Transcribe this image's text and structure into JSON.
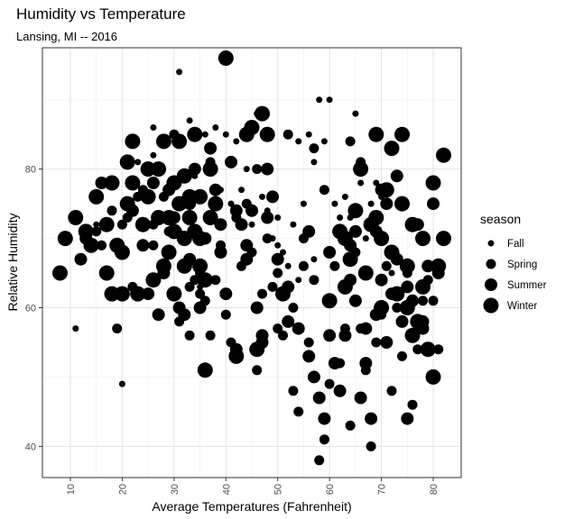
{
  "chart_data": {
    "type": "scatter",
    "title": "Humidity vs Temperature",
    "subtitle": "Lansing, MI -- 2016",
    "xlabel": "Average Temperatures (Fahrenheit)",
    "ylabel": "Relative Humidity",
    "xlim": [
      4.6,
      85.4
    ],
    "ylim": [
      35.5,
      97.5
    ],
    "xticks": [
      10,
      20,
      30,
      40,
      50,
      60,
      70,
      80
    ],
    "yticks": [
      40,
      60,
      80
    ],
    "grid": true,
    "legend": {
      "title": "season",
      "placement": "right",
      "entries": [
        "Fall",
        "Spring",
        "Summer",
        "Winter"
      ]
    },
    "size_levels": {
      "Fall": 3.5,
      "Spring": 5.5,
      "Summer": 7.0,
      "Winter": 8.5
    },
    "series": [
      {
        "name": "Winter",
        "points": [
          [
            8,
            65
          ],
          [
            9,
            70
          ],
          [
            11,
            73
          ],
          [
            13,
            71
          ],
          [
            14,
            69
          ],
          [
            15,
            76
          ],
          [
            17,
            72
          ],
          [
            17,
            65
          ],
          [
            18,
            78
          ],
          [
            18,
            62
          ],
          [
            19,
            69
          ],
          [
            20,
            62
          ],
          [
            20,
            68
          ],
          [
            21,
            81
          ],
          [
            21,
            75
          ],
          [
            22,
            78
          ],
          [
            22,
            84
          ],
          [
            23,
            62
          ],
          [
            24,
            72
          ],
          [
            25,
            76
          ],
          [
            25,
            80
          ],
          [
            26,
            64
          ],
          [
            27,
            73
          ],
          [
            27,
            80
          ],
          [
            28,
            84
          ],
          [
            28,
            66
          ],
          [
            29,
            73
          ],
          [
            29,
            68
          ],
          [
            30,
            71
          ],
          [
            30,
            78
          ],
          [
            30,
            62
          ],
          [
            31,
            84
          ],
          [
            31,
            75
          ],
          [
            32,
            70
          ],
          [
            32,
            66
          ],
          [
            32,
            79
          ],
          [
            33,
            76
          ],
          [
            33,
            73
          ],
          [
            34,
            85
          ],
          [
            34,
            71
          ],
          [
            35,
            70
          ],
          [
            35,
            76
          ],
          [
            35,
            66
          ],
          [
            36,
            64
          ],
          [
            36,
            51
          ],
          [
            37,
            73
          ],
          [
            37,
            80
          ],
          [
            38,
            75
          ],
          [
            40,
            96
          ],
          [
            42,
            53
          ],
          [
            44,
            85
          ],
          [
            45,
            86
          ],
          [
            46,
            54
          ],
          [
            47,
            88
          ],
          [
            48,
            85
          ],
          [
            51,
            62
          ],
          [
            62,
            71
          ],
          [
            63,
            70
          ],
          [
            64,
            67
          ],
          [
            65,
            74
          ],
          [
            67,
            65
          ],
          [
            68,
            72
          ],
          [
            69,
            73
          ],
          [
            70,
            70
          ],
          [
            70,
            60
          ],
          [
            71,
            77
          ],
          [
            72,
            83
          ],
          [
            72,
            68
          ],
          [
            73,
            62
          ],
          [
            74,
            75
          ],
          [
            75,
            66
          ],
          [
            75,
            60
          ],
          [
            76,
            72
          ],
          [
            76,
            56
          ],
          [
            77,
            58
          ],
          [
            78,
            63
          ],
          [
            78,
            70
          ],
          [
            79,
            54
          ],
          [
            80,
            50
          ],
          [
            81,
            66
          ],
          [
            82,
            70
          ],
          [
            82,
            82
          ],
          [
            80,
            78
          ],
          [
            74,
            85
          ],
          [
            69,
            85
          ],
          [
            66,
            80
          ],
          [
            63,
            63
          ],
          [
            60,
            61
          ]
        ]
      },
      {
        "name": "Summer",
        "points": [
          [
            24,
            69
          ],
          [
            26,
            78
          ],
          [
            28,
            65
          ],
          [
            29,
            77
          ],
          [
            30,
            73
          ],
          [
            31,
            60
          ],
          [
            32,
            59
          ],
          [
            33,
            75
          ],
          [
            34,
            80
          ],
          [
            35,
            60
          ],
          [
            36,
            70
          ],
          [
            38,
            77
          ],
          [
            39,
            68
          ],
          [
            40,
            62
          ],
          [
            41,
            81
          ],
          [
            42,
            54
          ],
          [
            43,
            72
          ],
          [
            44,
            67
          ],
          [
            45,
            74
          ],
          [
            46,
            60
          ],
          [
            47,
            55
          ],
          [
            48,
            80
          ],
          [
            49,
            76
          ],
          [
            50,
            67
          ],
          [
            52,
            63
          ],
          [
            54,
            57
          ],
          [
            56,
            53
          ],
          [
            57,
            50
          ],
          [
            58,
            47
          ],
          [
            59,
            44
          ],
          [
            60,
            56
          ],
          [
            61,
            52
          ],
          [
            62,
            48
          ],
          [
            63,
            56
          ],
          [
            64,
            69
          ],
          [
            65,
            61
          ],
          [
            66,
            47
          ],
          [
            67,
            57
          ],
          [
            68,
            44
          ],
          [
            69,
            59
          ],
          [
            70,
            64
          ],
          [
            70,
            77
          ],
          [
            71,
            55
          ],
          [
            72,
            62
          ],
          [
            73,
            67
          ],
          [
            74,
            58
          ],
          [
            75,
            63
          ],
          [
            76,
            61
          ],
          [
            77,
            72
          ],
          [
            78,
            58
          ],
          [
            79,
            66
          ],
          [
            80,
            75
          ],
          [
            81,
            65
          ],
          [
            67,
            52
          ],
          [
            64,
            64
          ],
          [
            69,
            71
          ],
          [
            75,
            44
          ],
          [
            78,
            57
          ],
          [
            73,
            79
          ],
          [
            71,
            75
          ],
          [
            65,
            71
          ],
          [
            60,
            68
          ],
          [
            56,
            71
          ],
          [
            52,
            58
          ],
          [
            48,
            73
          ],
          [
            47,
            56
          ],
          [
            44,
            69
          ],
          [
            42,
            74
          ],
          [
            39,
            72
          ],
          [
            37,
            83
          ],
          [
            33,
            67
          ],
          [
            27,
            59
          ],
          [
            25,
            62
          ],
          [
            22,
            74
          ],
          [
            16,
            78
          ],
          [
            13,
            70
          ],
          [
            12,
            67
          ]
        ]
      },
      {
        "name": "Spring",
        "points": [
          [
            19,
            57
          ],
          [
            21,
            73
          ],
          [
            23,
            76
          ],
          [
            26,
            72
          ],
          [
            29,
            71
          ],
          [
            30,
            85
          ],
          [
            33,
            56
          ],
          [
            34,
            64
          ],
          [
            35,
            62
          ],
          [
            36,
            61
          ],
          [
            37,
            81
          ],
          [
            38,
            64
          ],
          [
            39,
            69
          ],
          [
            41,
            55
          ],
          [
            42,
            73
          ],
          [
            44,
            75
          ],
          [
            45,
            68
          ],
          [
            46,
            51
          ],
          [
            47,
            62
          ],
          [
            48,
            70
          ],
          [
            49,
            63
          ],
          [
            50,
            65
          ],
          [
            51,
            56
          ],
          [
            52,
            85
          ],
          [
            53,
            48
          ],
          [
            54,
            45
          ],
          [
            55,
            66
          ],
          [
            56,
            55
          ],
          [
            57,
            64
          ],
          [
            58,
            38
          ],
          [
            59,
            41
          ],
          [
            60,
            49
          ],
          [
            61,
            66
          ],
          [
            62,
            52
          ],
          [
            63,
            57
          ],
          [
            64,
            43
          ],
          [
            65,
            68
          ],
          [
            66,
            57
          ],
          [
            67,
            51
          ],
          [
            68,
            40
          ],
          [
            69,
            55
          ],
          [
            70,
            59
          ],
          [
            71,
            66
          ],
          [
            72,
            48
          ],
          [
            73,
            60
          ],
          [
            74,
            53
          ],
          [
            75,
            65
          ],
          [
            76,
            46
          ],
          [
            77,
            54
          ],
          [
            78,
            61
          ],
          [
            79,
            64
          ],
          [
            80,
            61
          ],
          [
            81,
            54
          ],
          [
            64,
            84
          ],
          [
            66,
            81
          ],
          [
            59,
            77
          ],
          [
            57,
            83
          ],
          [
            55,
            70
          ],
          [
            53,
            60
          ],
          [
            50,
            57
          ],
          [
            46,
            80
          ],
          [
            43,
            66
          ],
          [
            40,
            59
          ],
          [
            37,
            56
          ],
          [
            35,
            65
          ],
          [
            33,
            63
          ],
          [
            31,
            58
          ],
          [
            28,
            76
          ],
          [
            26,
            69
          ],
          [
            24,
            77
          ],
          [
            22,
            63
          ],
          [
            20,
            72
          ],
          [
            18,
            74
          ],
          [
            16,
            69
          ],
          [
            15,
            71
          ]
        ]
      },
      {
        "name": "Fall",
        "points": [
          [
            11,
            57
          ],
          [
            20,
            49
          ],
          [
            26,
            86
          ],
          [
            31,
            71
          ],
          [
            34,
            79
          ],
          [
            35,
            63
          ],
          [
            38,
            86
          ],
          [
            40,
            85
          ],
          [
            41,
            75
          ],
          [
            43,
            77
          ],
          [
            45,
            72
          ],
          [
            46,
            88
          ],
          [
            47,
            76
          ],
          [
            48,
            74
          ],
          [
            49,
            70
          ],
          [
            50,
            73
          ],
          [
            51,
            68
          ],
          [
            52,
            66
          ],
          [
            53,
            72
          ],
          [
            54,
            64
          ],
          [
            55,
            75
          ],
          [
            56,
            85
          ],
          [
            57,
            81
          ],
          [
            58,
            90
          ],
          [
            59,
            84
          ],
          [
            60,
            90
          ],
          [
            61,
            75
          ],
          [
            62,
            73
          ],
          [
            63,
            76
          ],
          [
            64,
            73
          ],
          [
            65,
            88
          ],
          [
            66,
            78
          ],
          [
            67,
            70
          ],
          [
            68,
            75
          ],
          [
            69,
            78
          ],
          [
            70,
            76
          ],
          [
            72,
            65
          ],
          [
            57,
            67
          ],
          [
            54,
            84
          ],
          [
            50,
            69
          ],
          [
            44,
            80
          ],
          [
            42,
            84
          ],
          [
            39,
            77
          ],
          [
            36,
            85
          ],
          [
            33,
            87
          ],
          [
            31,
            94
          ],
          [
            26,
            82
          ],
          [
            23,
            81
          ],
          [
            15,
            72
          ]
        ]
      }
    ]
  }
}
